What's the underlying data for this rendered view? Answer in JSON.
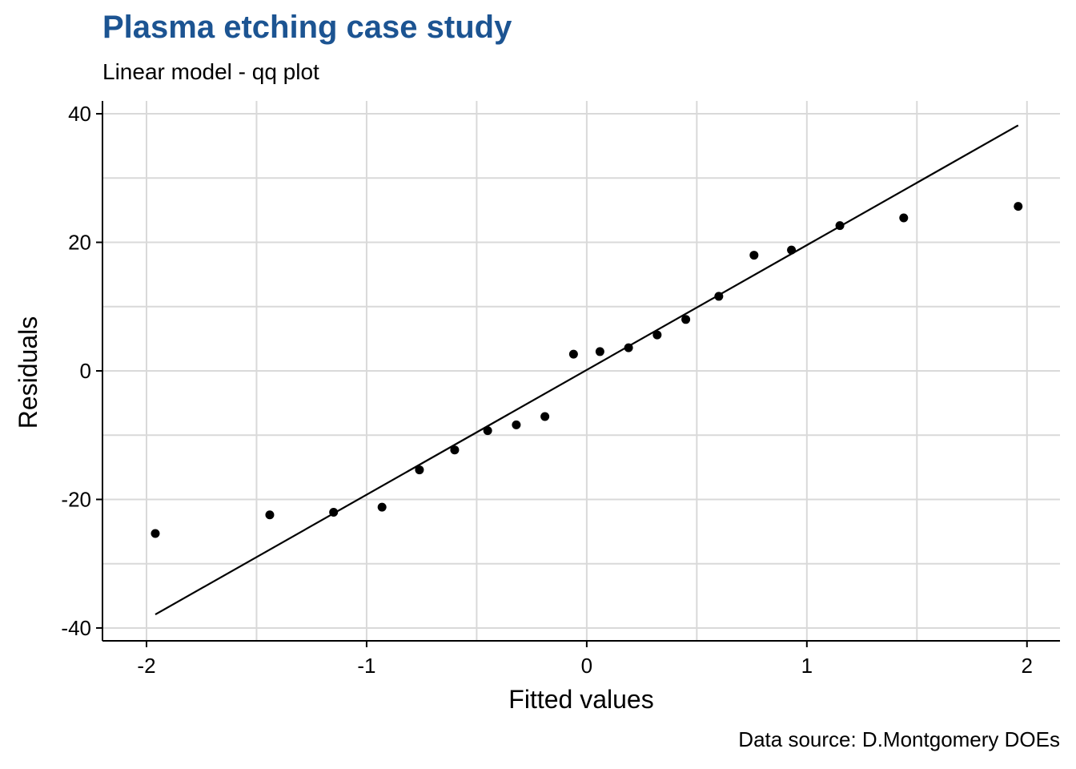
{
  "header": {
    "title": "Plasma etching case study",
    "subtitle": "Linear model - qq plot"
  },
  "footer": {
    "caption": "Data source: D.Montgomery DOEs"
  },
  "colors": {
    "title": "#1c5492",
    "grid": "#d9d9d9",
    "points": "#000000",
    "line": "#000000"
  },
  "chart_data": {
    "type": "scatter",
    "xlabel": "Fitted values",
    "ylabel": "Residuals",
    "xlim": [
      -2.2,
      2.15
    ],
    "ylim": [
      -42,
      42
    ],
    "xticks": [
      -2,
      -1,
      0,
      1,
      2
    ],
    "yticks": [
      -40,
      -20,
      0,
      20,
      40
    ],
    "xtick_labels": [
      "-2",
      "-1",
      "0",
      "1",
      "2"
    ],
    "ytick_labels": [
      "-40",
      "-20",
      "0",
      "20",
      "40"
    ],
    "grid": true,
    "legend": "none",
    "series": [
      {
        "type": "scatter",
        "x": [
          -1.96,
          -1.44,
          -1.15,
          -0.93,
          -0.76,
          -0.6,
          -0.45,
          -0.32,
          -0.19,
          -0.06,
          0.06,
          0.19,
          0.32,
          0.45,
          0.6,
          0.76,
          0.93,
          1.15,
          1.44,
          1.96
        ],
        "y": [
          -25.3,
          -22.4,
          -22.0,
          -21.2,
          -15.4,
          -12.3,
          -9.3,
          -8.4,
          -7.1,
          2.6,
          3.0,
          3.6,
          5.6,
          8.0,
          11.6,
          18.0,
          18.8,
          22.6,
          23.8,
          25.6
        ]
      },
      {
        "type": "line",
        "x": [
          -1.96,
          1.96
        ],
        "y": [
          -37.9,
          38.2
        ]
      }
    ]
  }
}
